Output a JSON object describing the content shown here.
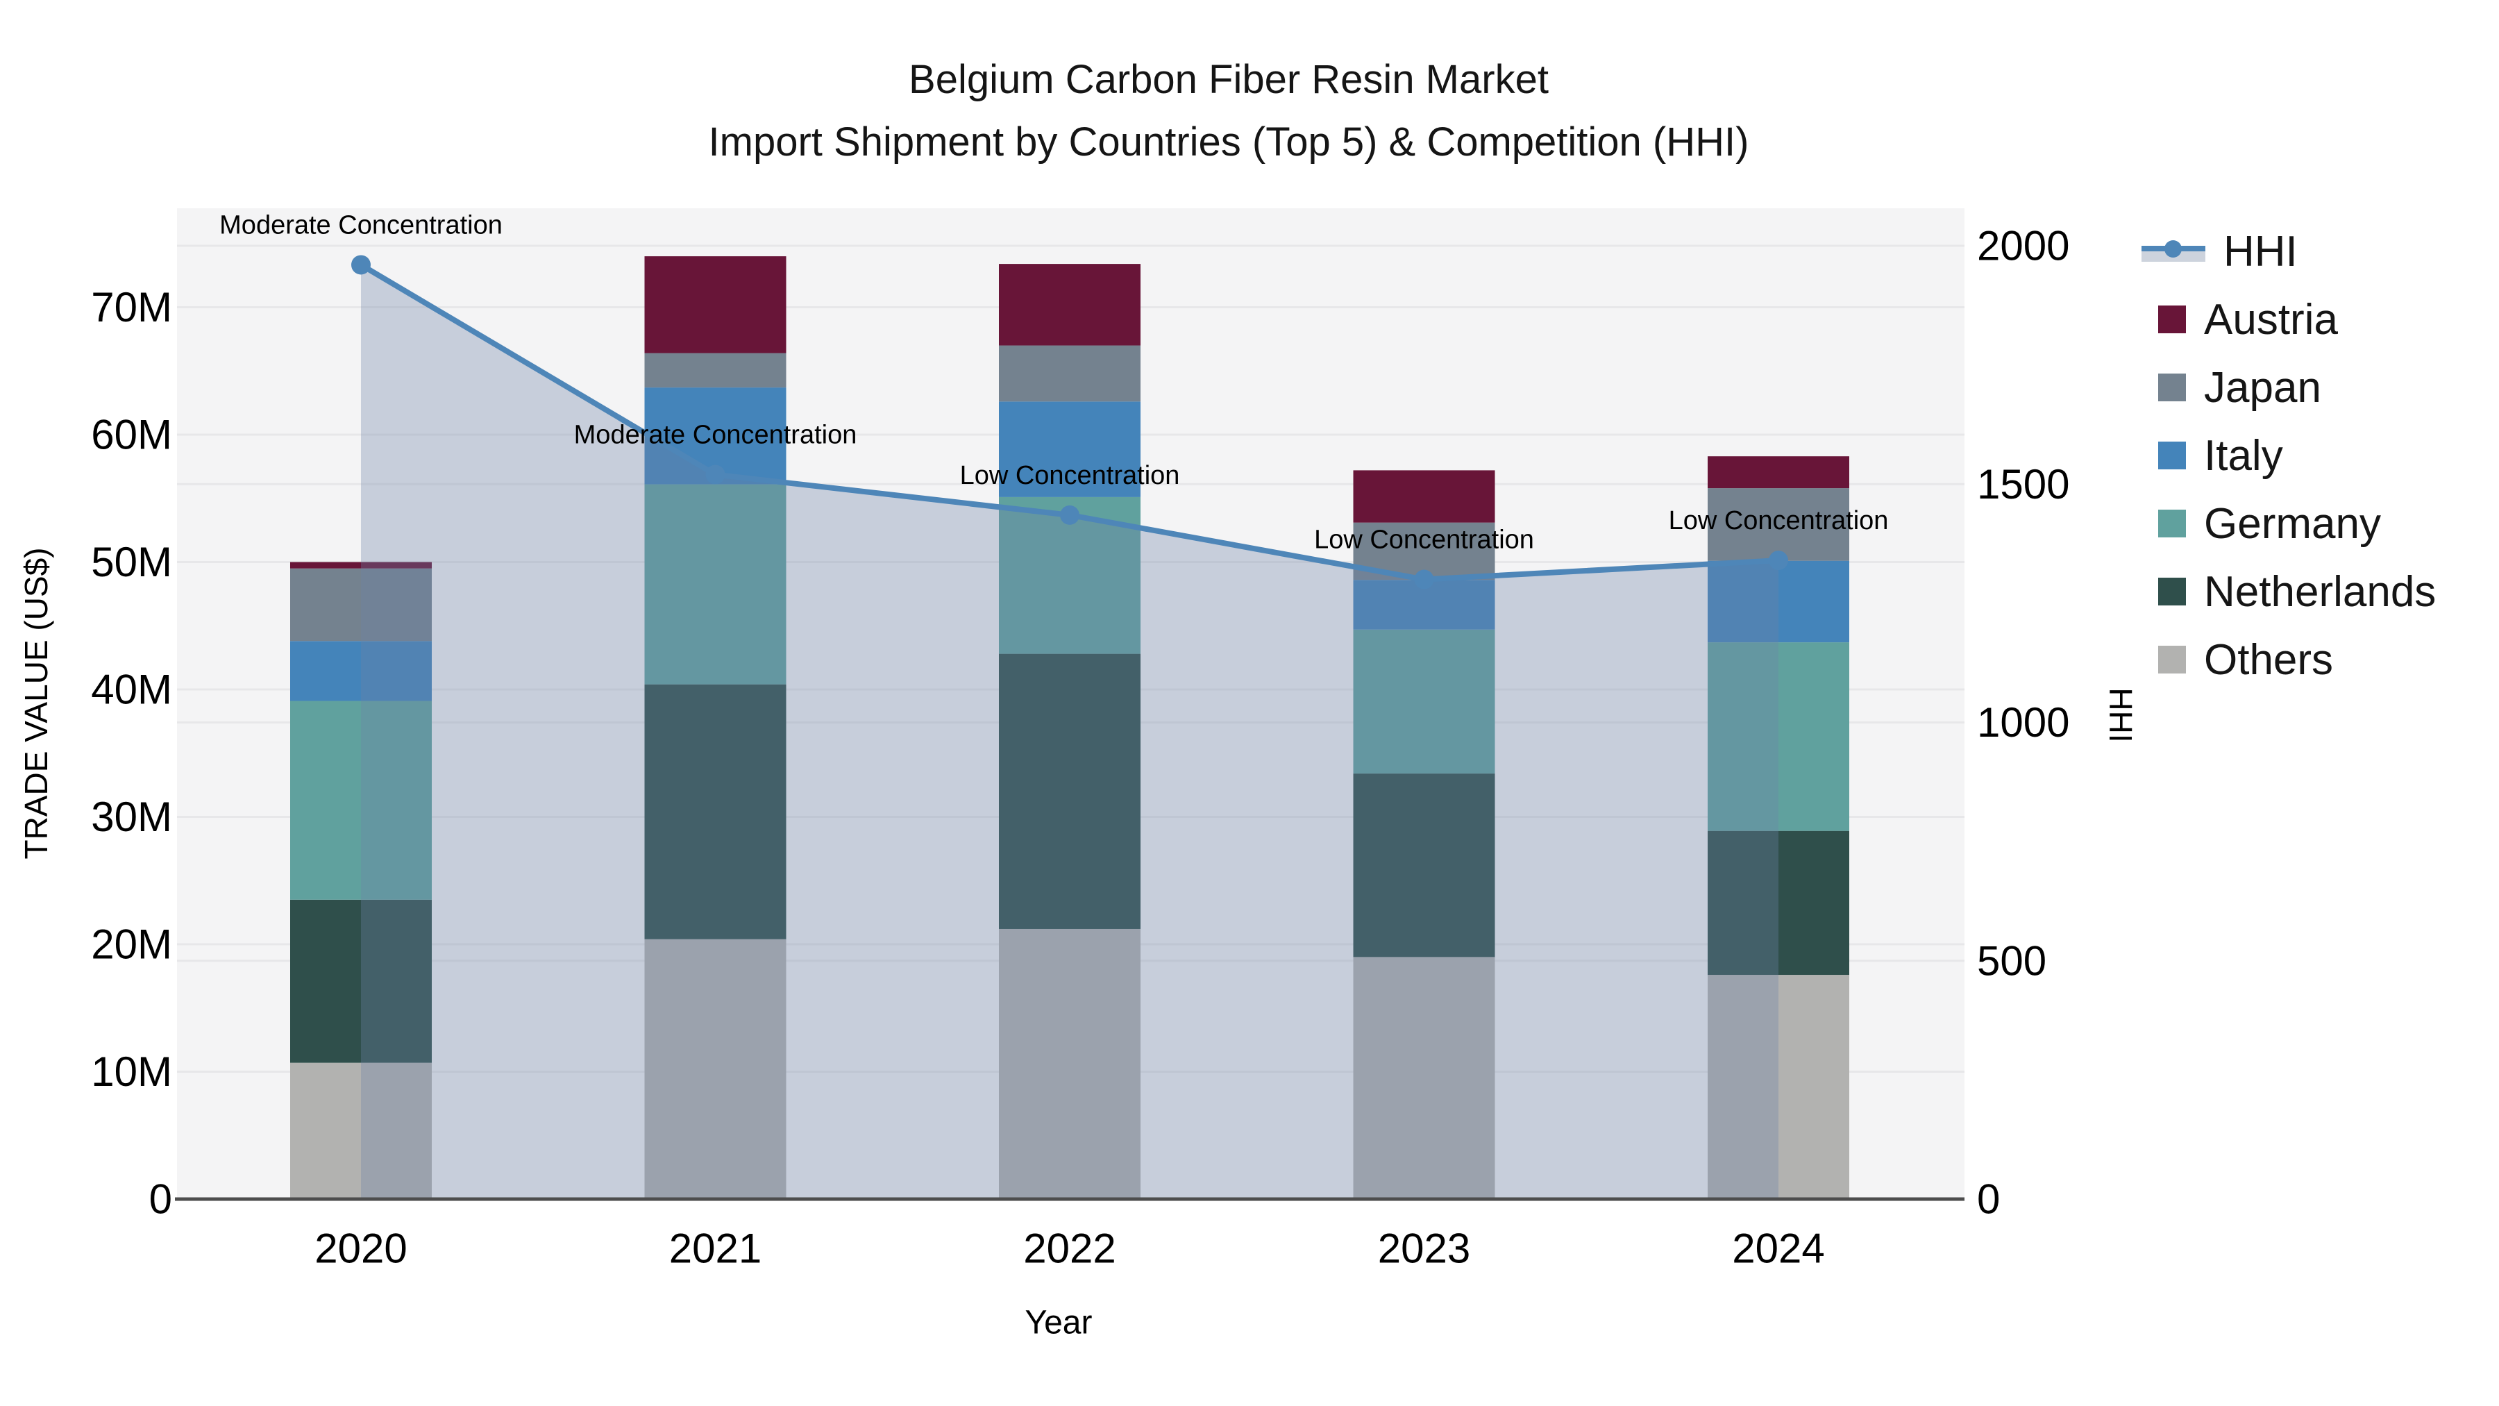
{
  "title": {
    "line1": "Belgium Carbon Fiber Resin Market",
    "line2": "Import Shipment by Countries (Top 5) & Competition (HHI)"
  },
  "axes": {
    "x": {
      "label": "Year",
      "ticks": [
        "2020",
        "2021",
        "2022",
        "2023",
        "2024"
      ]
    },
    "y_left": {
      "label": "TRADE VALUE (US$)",
      "ticks": [
        "0",
        "10M",
        "20M",
        "30M",
        "40M",
        "50M",
        "60M",
        "70M"
      ],
      "tick_values": [
        0,
        10,
        20,
        30,
        40,
        50,
        60,
        70
      ],
      "unit": "million US$",
      "range": [
        0,
        77.8
      ]
    },
    "y_right": {
      "label": "HHI",
      "ticks": [
        "0",
        "500",
        "1000",
        "1500",
        "2000"
      ],
      "tick_values": [
        0,
        500,
        1000,
        1500,
        2000
      ],
      "range": [
        0,
        2079
      ]
    }
  },
  "chart_data": {
    "type": "bar",
    "subtype": "stacked-bar with overlaid line+area on secondary axis",
    "title": "Belgium Carbon Fiber Resin Market — Import Shipment by Countries (Top 5) & Competition (HHI)",
    "xlabel": "Year",
    "ylabel": "TRADE VALUE (US$)",
    "ylabel_right": "HHI",
    "categories": [
      "2020",
      "2021",
      "2022",
      "2023",
      "2024"
    ],
    "stack_order_bottom_to_top": [
      "Others",
      "Netherlands",
      "Germany",
      "Italy",
      "Japan",
      "Austria"
    ],
    "series": [
      {
        "name": "Others",
        "axis": "left",
        "unit": "M US$",
        "values": [
          10.7,
          20.4,
          21.2,
          19.0,
          17.6
        ],
        "color": "#b2b2b0"
      },
      {
        "name": "Netherlands",
        "axis": "left",
        "unit": "M US$",
        "values": [
          12.8,
          20.0,
          21.6,
          14.4,
          11.3
        ],
        "color": "#2f4f4b"
      },
      {
        "name": "Germany",
        "axis": "left",
        "unit": "M US$",
        "values": [
          15.6,
          15.7,
          12.3,
          11.3,
          14.8
        ],
        "color": "#60a19e"
      },
      {
        "name": "Italy",
        "axis": "left",
        "unit": "M US$",
        "values": [
          4.7,
          7.6,
          7.5,
          3.9,
          6.4
        ],
        "color": "#4484ba"
      },
      {
        "name": "Japan",
        "axis": "left",
        "unit": "M US$",
        "values": [
          5.7,
          2.7,
          4.4,
          4.5,
          5.7
        ],
        "color": "#74828f"
      },
      {
        "name": "Austria",
        "axis": "left",
        "unit": "M US$",
        "values": [
          0.5,
          7.6,
          6.4,
          4.1,
          2.5
        ],
        "color": "#681538"
      }
    ],
    "bar_totals": [
      50.0,
      74.0,
      73.4,
      57.2,
      58.3
    ],
    "line_series": {
      "name": "HHI",
      "axis": "right",
      "values": [
        1960,
        1520,
        1435,
        1300,
        1340
      ],
      "color": "#4e86b8",
      "area_color": "rgba(108,132,166,0.33)"
    },
    "annotations": [
      {
        "x": "2020",
        "text": "Moderate Concentration"
      },
      {
        "x": "2021",
        "text": "Moderate Concentration"
      },
      {
        "x": "2022",
        "text": "Low Concentration"
      },
      {
        "x": "2023",
        "text": "Low Concentration"
      },
      {
        "x": "2024",
        "text": "Low Concentration"
      }
    ],
    "legend_position": "right",
    "grid": true
  },
  "legend": {
    "items": [
      {
        "label": "HHI",
        "type": "line",
        "color": "#4e86b8",
        "band_color": "#cdd3dd"
      },
      {
        "label": "Austria",
        "type": "swatch",
        "color": "#681538"
      },
      {
        "label": "Japan",
        "type": "swatch",
        "color": "#74828f"
      },
      {
        "label": "Italy",
        "type": "swatch",
        "color": "#4484ba"
      },
      {
        "label": "Germany",
        "type": "swatch",
        "color": "#60a19e"
      },
      {
        "label": "Netherlands",
        "type": "swatch",
        "color": "#2f4f4b"
      },
      {
        "label": "Others",
        "type": "swatch",
        "color": "#b2b2b0"
      }
    ]
  },
  "colors": {
    "axis_line": "#4d4d4d",
    "grid": "#e7e7e9",
    "text": "#111111",
    "plot_bg": "#f4f4f5",
    "figure_bg": "#ffffff"
  }
}
